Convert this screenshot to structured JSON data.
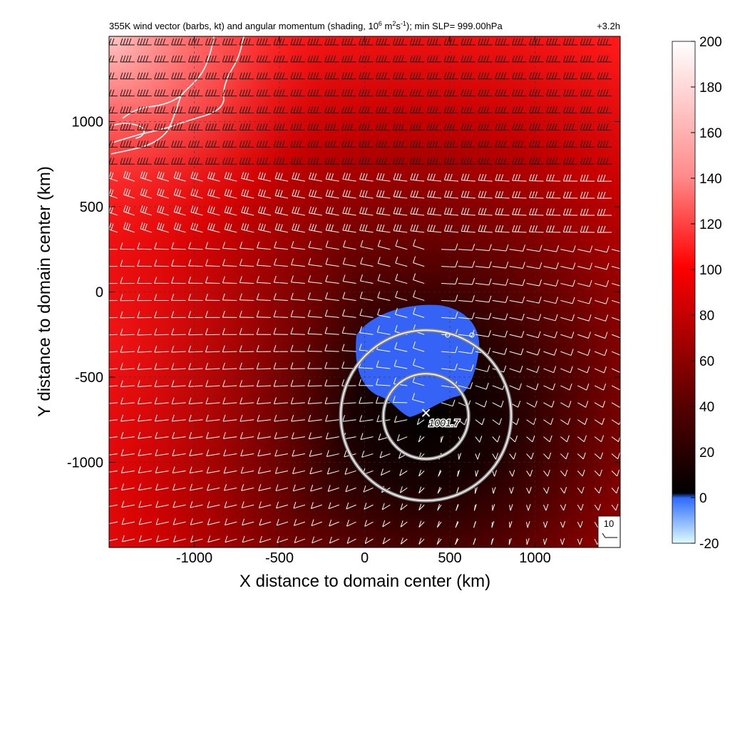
{
  "chart_data": {
    "type": "heatmap",
    "title": "355K wind vector (barbs, kt) and angular momentum (shading, 10",
    "title_sup1": "6",
    "title_mid": " m",
    "title_sup2": "2",
    "title_mid2": "s",
    "title_sup3": "-1",
    "title_end": "); min SLP= 999.00hPa",
    "time_label": "+3.2h",
    "xlabel": "X distance to domain center (km)",
    "ylabel": "Y distance to domain center (km)",
    "xlim": [
      -1500,
      1500
    ],
    "ylim": [
      -1500,
      1500
    ],
    "x_ticks": [
      -1000,
      -500,
      0,
      500,
      1000
    ],
    "x_tick_labels": [
      "-1000",
      "-500",
      "0",
      "500",
      "1000"
    ],
    "y_ticks": [
      1000,
      500,
      0,
      -500,
      -1000
    ],
    "y_tick_labels": [
      "1000",
      "500",
      "0",
      "-500",
      "-1000"
    ],
    "grid": "dashed",
    "colorbar": {
      "ticks": [
        200,
        180,
        160,
        140,
        120,
        100,
        80,
        60,
        40,
        20,
        0,
        -20
      ],
      "tick_labels": [
        "200",
        "180",
        "160",
        "140",
        "120",
        "100",
        "80",
        "60",
        "40",
        "20",
        "0",
        "-20"
      ],
      "range": [
        -20,
        200
      ],
      "colors": {
        "high": "#ffffff",
        "upper": "#ff8080",
        "mid": "#ff0000",
        "low": "#5a0000",
        "zero": "#000000",
        "neg_top": "#2f6bff",
        "neg_bottom": "#dffcff"
      }
    },
    "cyclone_center": {
      "x": 360,
      "y": -710,
      "label": "1001.7"
    },
    "rings_km": [
      {
        "cx": 360,
        "cy": -725,
        "r": 500
      },
      {
        "cx": 360,
        "cy": -730,
        "r": 250
      }
    ],
    "reference_barb": {
      "label": "10"
    }
  }
}
